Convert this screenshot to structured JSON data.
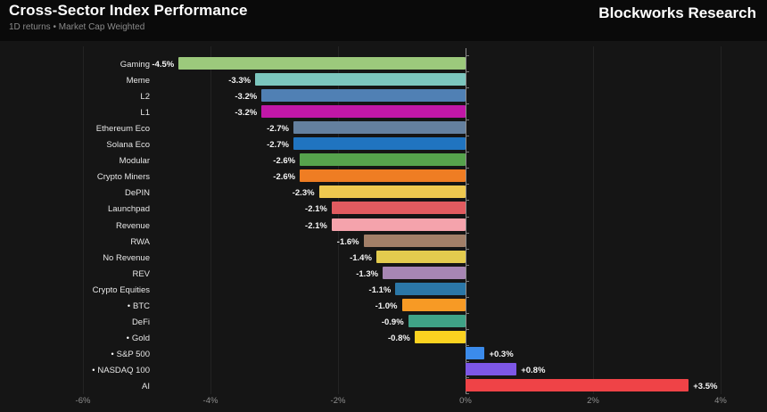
{
  "header": {
    "title": "Cross-Sector Index Performance",
    "subtitle": "1D returns • Market Cap Weighted",
    "brand": "Blockworks Research"
  },
  "chart_data": {
    "type": "bar",
    "orientation": "horizontal",
    "title": "Cross-Sector Index Performance",
    "subtitle": "1D returns • Market Cap Weighted",
    "categories": [
      "Gaming",
      "Meme",
      "L2",
      "L1",
      "Ethereum Eco",
      "Solana Eco",
      "Modular",
      "Crypto Miners",
      "DePIN",
      "Launchpad",
      "Revenue",
      "RWA",
      "No Revenue",
      "REV",
      "Crypto Equities",
      "BTC",
      "DeFi",
      "Gold",
      "S&P 500",
      "NASDAQ 100",
      "AI"
    ],
    "values": [
      -4.5,
      -3.3,
      -3.2,
      -3.2,
      -2.7,
      -2.7,
      -2.6,
      -2.6,
      -2.3,
      -2.1,
      -2.1,
      -1.6,
      -1.4,
      -1.3,
      -1.1,
      -1.0,
      -0.9,
      -0.8,
      0.3,
      0.8,
      3.5
    ],
    "value_labels": [
      "-4.5%",
      "-3.3%",
      "-3.2%",
      "-3.2%",
      "-2.7%",
      "-2.7%",
      "-2.6%",
      "-2.6%",
      "-2.3%",
      "-2.1%",
      "-2.1%",
      "-1.6%",
      "-1.4%",
      "-1.3%",
      "-1.1%",
      "-1.0%",
      "-0.9%",
      "-0.8%",
      "+0.3%",
      "+0.8%",
      "+3.5%"
    ],
    "bar_colors": [
      "#9cc97c",
      "#7cc6be",
      "#5080b4",
      "#c117a7",
      "#64809f",
      "#2074c0",
      "#56a34c",
      "#ef7d23",
      "#eec84f",
      "#e15b60",
      "#f5a3ac",
      "#a27f68",
      "#e3cb4e",
      "#a786b4",
      "#2b77a7",
      "#f79a25",
      "#3fa287",
      "#fbd220",
      "#3b8beb",
      "#7d57e6",
      "#ef4347"
    ],
    "bulleted_categories": [
      "BTC",
      "Gold",
      "S&P 500",
      "NASDAQ 100"
    ],
    "bullet_glyph": "•",
    "xlim": [
      -6,
      4
    ],
    "x_tick_values": [
      -6,
      -4,
      -2,
      0,
      2,
      4
    ],
    "x_tick_labels": [
      "-6%",
      "-4%",
      "-2%",
      "0%",
      "2%",
      "4%"
    ],
    "grid": true,
    "legend": false,
    "background_color": "#151515",
    "header_color": "#0a0a0a",
    "axis_label_color": "#8f8f8f"
  }
}
